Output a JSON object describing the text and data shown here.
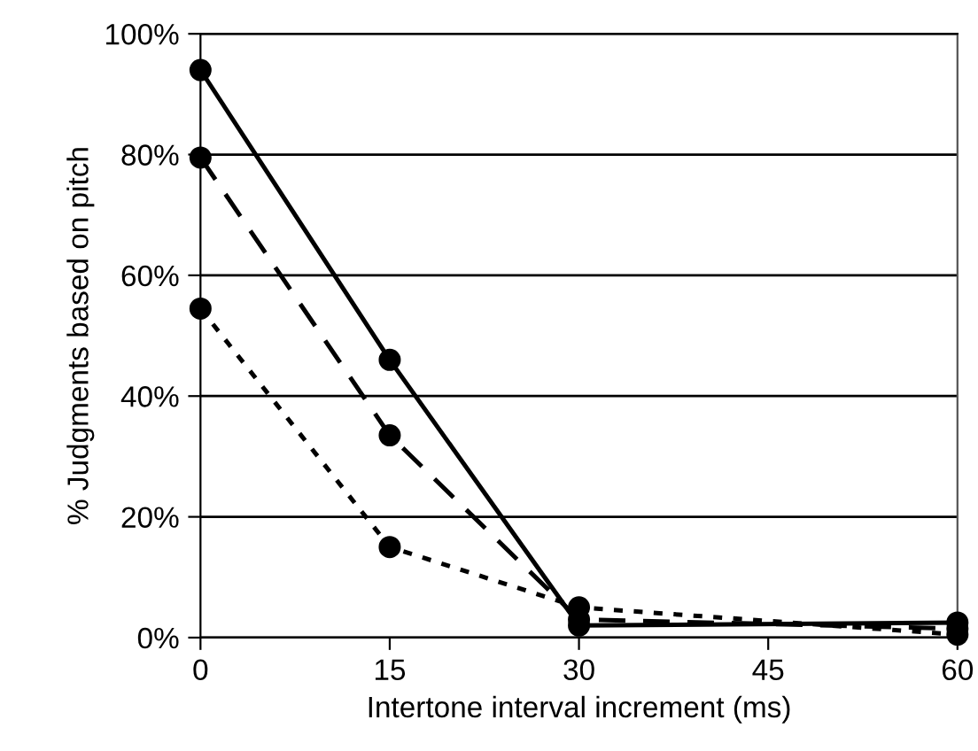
{
  "chart_data": {
    "type": "line",
    "xlabel": "Intertone interval increment (ms)",
    "ylabel": "% Judgments based on pitch",
    "x": [
      0,
      15,
      30,
      60
    ],
    "series": [
      {
        "color": "#000000",
        "line_style": "solid",
        "values": [
          94,
          46,
          2,
          2.5
        ]
      },
      {
        "color": "#000000",
        "line_style": "dashed",
        "values": [
          79.5,
          33.5,
          3,
          1.5
        ]
      },
      {
        "color": "#000000",
        "line_style": "dotted",
        "values": [
          54.5,
          15,
          5,
          0.5
        ]
      }
    ],
    "marker": "circle",
    "grid": "y",
    "xlim": [
      0,
      60
    ],
    "xticks": [
      0,
      15,
      30,
      45,
      60
    ],
    "ylim": [
      0,
      100
    ],
    "yticks": [
      {
        "value": 0,
        "label": "0%"
      },
      {
        "value": 20,
        "label": "20%"
      },
      {
        "value": 40,
        "label": "40%"
      },
      {
        "value": 60,
        "label": "60%"
      },
      {
        "value": 80,
        "label": "80%"
      },
      {
        "value": 100,
        "label": "100%"
      }
    ]
  }
}
